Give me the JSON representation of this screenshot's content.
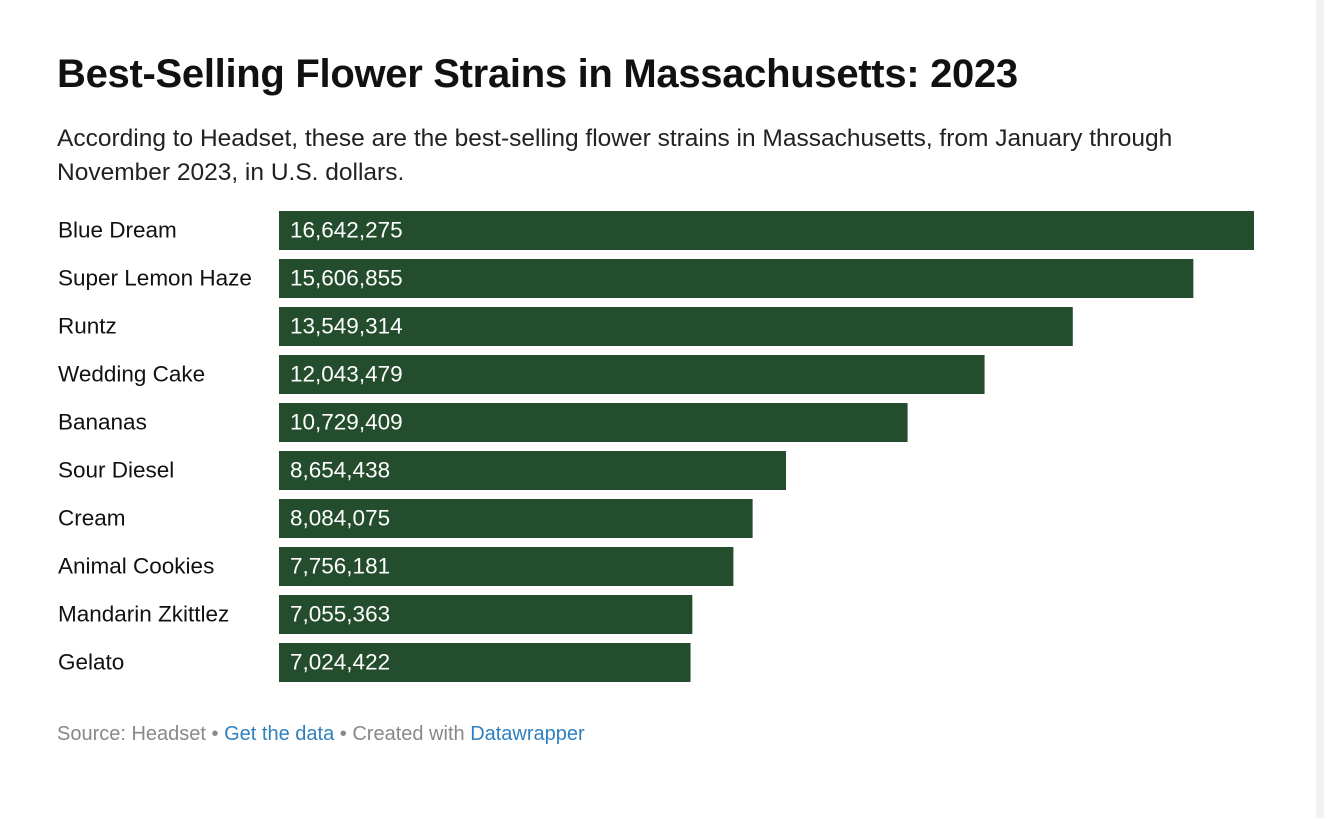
{
  "chart_data": {
    "type": "bar",
    "title": "Best-Selling Flower Strains in Massachusetts: 2023",
    "subtitle": "According to Headset, these are the best-selling flower strains in Massachusetts, from January through November 2023, in U.S. dollars.",
    "categories": [
      "Blue Dream",
      "Super Lemon Haze",
      "Runtz",
      "Wedding Cake",
      "Bananas",
      "Sour Diesel",
      "Cream",
      "Animal Cookies",
      "Mandarin Zkittlez",
      "Gelato"
    ],
    "values": [
      16642275,
      15606855,
      13549314,
      12043479,
      10729409,
      8654438,
      8084075,
      7756181,
      7055363,
      7024422
    ],
    "value_labels": [
      "16,642,275",
      "15,606,855",
      "13,549,314",
      "12,043,479",
      "10,729,409",
      "8,654,438",
      "8,084,075",
      "7,756,181",
      "7,055,363",
      "7,024,422"
    ],
    "color": "#234d2d",
    "footer": {
      "source": "Source: Headset",
      "separator": "•",
      "get_data": "Get the data",
      "created_with": "Created with",
      "credit": "Datawrapper"
    }
  }
}
